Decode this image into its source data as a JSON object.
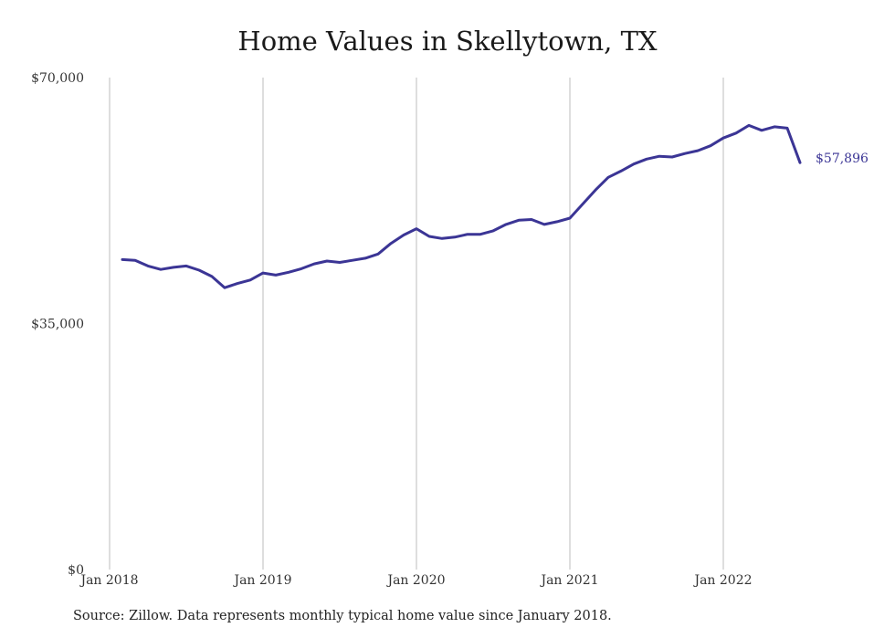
{
  "chart_data": {
    "type": "line",
    "title": "Home Values in Skellytown, TX",
    "xlabel": "",
    "ylabel": "",
    "ylim": [
      0,
      70000
    ],
    "y_ticks": [
      {
        "value": 0,
        "label": "$0"
      },
      {
        "value": 35000,
        "label": "$35,000"
      },
      {
        "value": 70000,
        "label": "$70,000"
      }
    ],
    "x_ticks": [
      {
        "date": "2018-01",
        "label": "Jan 2018"
      },
      {
        "date": "2019-01",
        "label": "Jan 2019"
      },
      {
        "date": "2020-01",
        "label": "Jan 2020"
      },
      {
        "date": "2021-01",
        "label": "Jan 2021"
      },
      {
        "date": "2022-01",
        "label": "Jan 2022"
      }
    ],
    "grid": "vertical",
    "line_color": "#3b3595",
    "series": [
      {
        "x": [
          "2018-02",
          "2018-03",
          "2018-04",
          "2018-05",
          "2018-06",
          "2018-07",
          "2018-08",
          "2018-09",
          "2018-10",
          "2018-11",
          "2018-12",
          "2019-01",
          "2019-02",
          "2019-03",
          "2019-04",
          "2019-05",
          "2019-06",
          "2019-07",
          "2019-08",
          "2019-09",
          "2019-10",
          "2019-11",
          "2019-12",
          "2020-01",
          "2020-02",
          "2020-03",
          "2020-04",
          "2020-05",
          "2020-06",
          "2020-07",
          "2020-08",
          "2020-09",
          "2020-10",
          "2020-11",
          "2020-12",
          "2021-01",
          "2021-02",
          "2021-03",
          "2021-04",
          "2021-05",
          "2021-06",
          "2021-07",
          "2021-08",
          "2021-09",
          "2021-10",
          "2021-11",
          "2021-12",
          "2022-01",
          "2022-02",
          "2022-03",
          "2022-04",
          "2022-05",
          "2022-06",
          "2022-07"
        ],
        "values": [
          44100,
          44000,
          43200,
          42700,
          43000,
          43200,
          42600,
          41700,
          40100,
          40700,
          41200,
          42200,
          41900,
          42300,
          42800,
          43500,
          43900,
          43700,
          44000,
          44300,
          44900,
          46400,
          47600,
          48500,
          47400,
          47100,
          47300,
          47700,
          47700,
          48200,
          49100,
          49700,
          49800,
          49100,
          49500,
          50000,
          52000,
          54000,
          55800,
          56700,
          57700,
          58400,
          58800,
          58700,
          59200,
          59600,
          60300,
          61400,
          62100,
          63200,
          62500,
          63000,
          62800,
          57896
        ]
      }
    ],
    "end_label": "$57,896"
  },
  "source_note": "Source: Zillow. Data represents monthly typical home value since January 2018."
}
